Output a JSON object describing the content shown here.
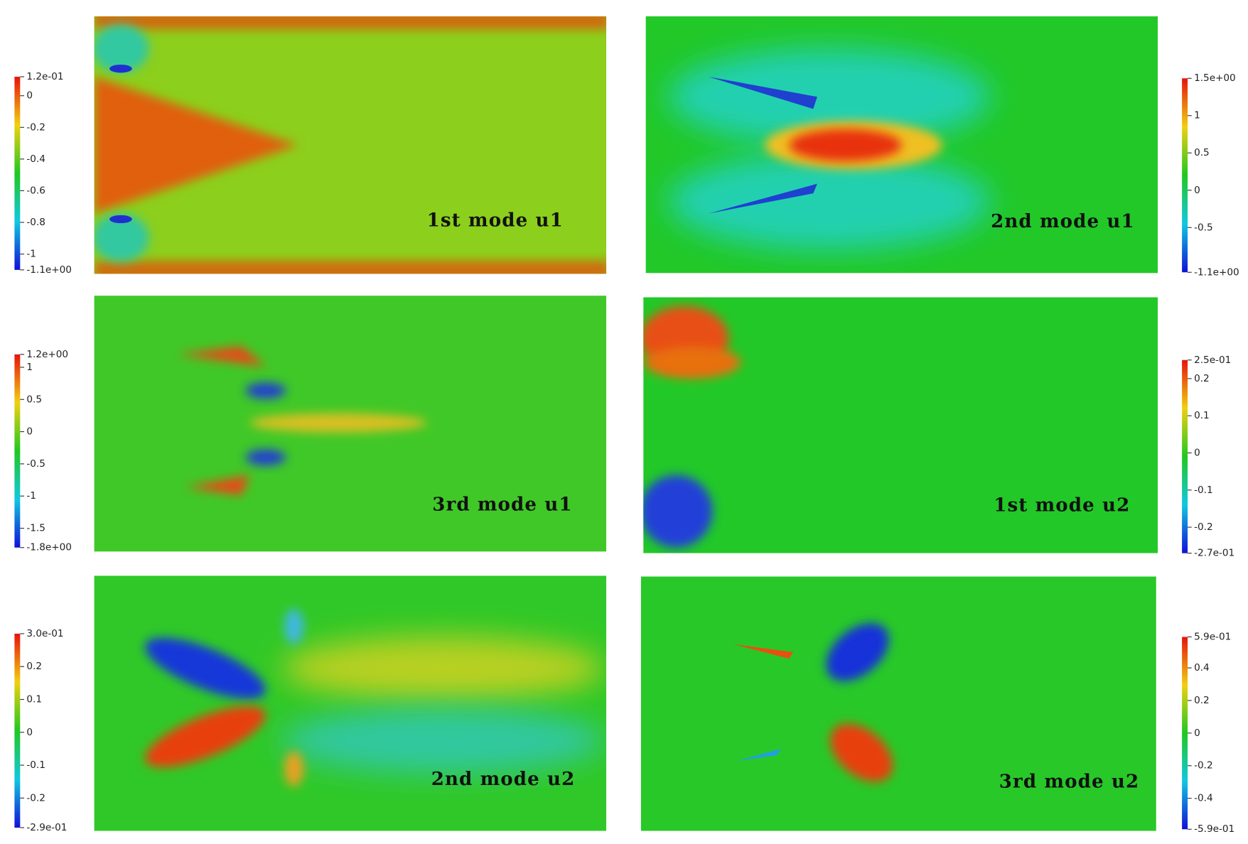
{
  "panels": [
    {
      "label": "1st mode u1",
      "colorbar": {
        "lim": [
          -1.1,
          0.12
        ],
        "ticks": [
          {
            "value": 0.12,
            "label": "1.2e-01"
          },
          0,
          -0.2,
          -0.4,
          -0.6,
          -0.8,
          -1,
          {
            "value": -1.1,
            "label": "-1.1e+00"
          }
        ]
      }
    },
    {
      "label": "2nd mode u1",
      "colorbar": {
        "lim": [
          -1.1,
          1.5
        ],
        "ticks": [
          {
            "value": 1.5,
            "label": "1.5e+00"
          },
          1,
          0.5,
          0,
          -0.5,
          {
            "value": -1.1,
            "label": "-1.1e+00"
          }
        ]
      }
    },
    {
      "label": "3rd mode u1",
      "colorbar": {
        "lim": [
          -1.8,
          1.2
        ],
        "ticks": [
          {
            "value": 1.2,
            "label": "1.2e+00"
          },
          1,
          0.5,
          0,
          -0.5,
          -1,
          -1.5,
          {
            "value": -1.8,
            "label": "-1.8e+00"
          }
        ]
      }
    },
    {
      "label": "1st mode u2",
      "colorbar": {
        "lim": [
          -0.27,
          0.25
        ],
        "ticks": [
          {
            "value": 0.25,
            "label": "2.5e-01"
          },
          0.2,
          0.1,
          0,
          -0.1,
          -0.2,
          {
            "value": -0.27,
            "label": "-2.7e-01"
          }
        ]
      }
    },
    {
      "label": "2nd mode u2",
      "colorbar": {
        "lim": [
          -0.29,
          0.3
        ],
        "ticks": [
          {
            "value": 0.3,
            "label": "3.0e-01"
          },
          0.2,
          0.1,
          0,
          -0.1,
          -0.2,
          {
            "value": -0.29,
            "label": "-2.9e-01"
          }
        ]
      }
    },
    {
      "label": "3rd mode u2",
      "colorbar": {
        "lim": [
          -0.59,
          0.59
        ],
        "ticks": [
          {
            "value": 0.59,
            "label": "5.9e-01"
          },
          0.4,
          0.2,
          0,
          -0.2,
          -0.4,
          {
            "value": -0.59,
            "label": "-5.9e-01"
          }
        ]
      }
    }
  ]
}
